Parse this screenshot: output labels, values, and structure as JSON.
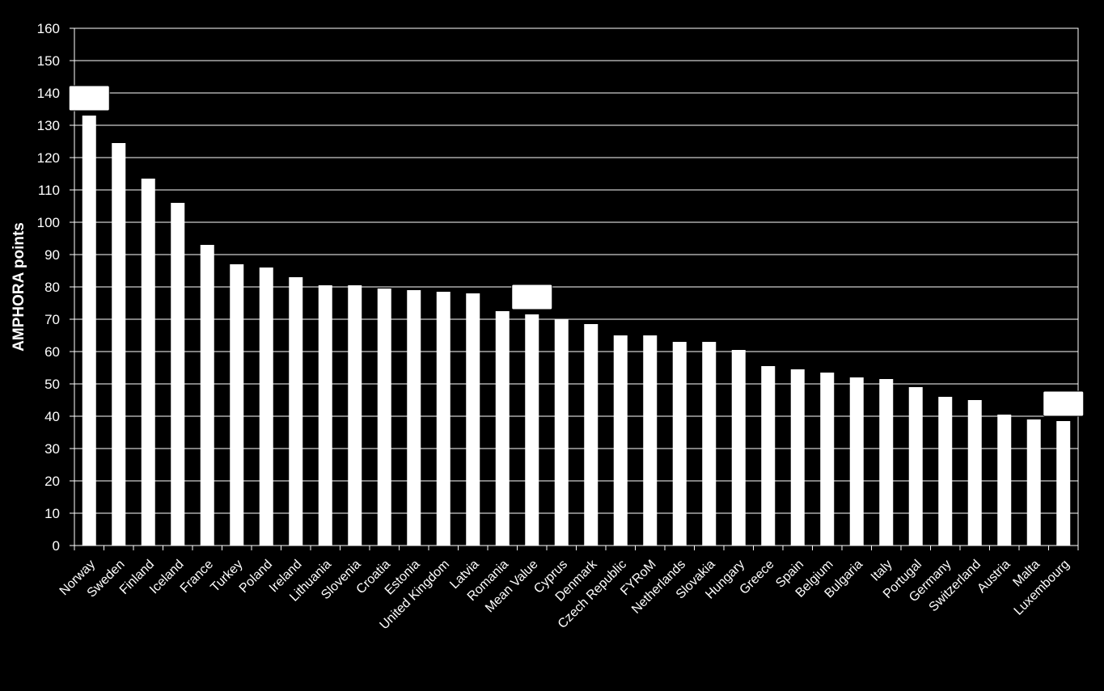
{
  "chart_data": {
    "type": "bar",
    "title": "",
    "xlabel": "",
    "ylabel": "AMPHORA points",
    "ylim": [
      0,
      160
    ],
    "yticks": [
      0,
      10,
      20,
      30,
      40,
      50,
      60,
      70,
      80,
      90,
      100,
      110,
      120,
      130,
      140,
      150,
      160
    ],
    "grid": true,
    "legend": "none",
    "categories": [
      "Norway",
      "Sweden",
      "Finland",
      "Iceland",
      "France",
      "Turkey",
      "Poland",
      "Ireland",
      "Lithuania",
      "Slovenia",
      "Croatia",
      "Estonia",
      "United Kingdom",
      "Latvia",
      "Romania",
      "Mean Value",
      "Cyprus",
      "Denmark",
      "Czech Republic",
      "FYRoM",
      "Netherlands",
      "Slovakia",
      "Hungary",
      "Greece",
      "Spain",
      "Belgium",
      "Bulgaria",
      "Italy",
      "Portugal",
      "Germany",
      "Switzerland",
      "Austria",
      "Malta",
      "Luxembourg"
    ],
    "values": [
      133,
      124.5,
      113.5,
      106,
      93,
      87,
      86,
      83,
      80.5,
      80.5,
      79.5,
      79,
      78.5,
      78,
      72.5,
      71.5,
      70,
      68.5,
      65,
      65,
      63,
      63,
      60.5,
      55.5,
      54.5,
      53.5,
      52,
      51.5,
      49,
      46,
      45,
      40.5,
      39,
      38.5
    ],
    "highlighted_categories": [
      "Norway",
      "Mean Value",
      "Luxembourg"
    ],
    "colors": {
      "background": "#000000",
      "bar": "#ffffff",
      "grid": "#ffffff",
      "text": "#ffffff"
    }
  }
}
